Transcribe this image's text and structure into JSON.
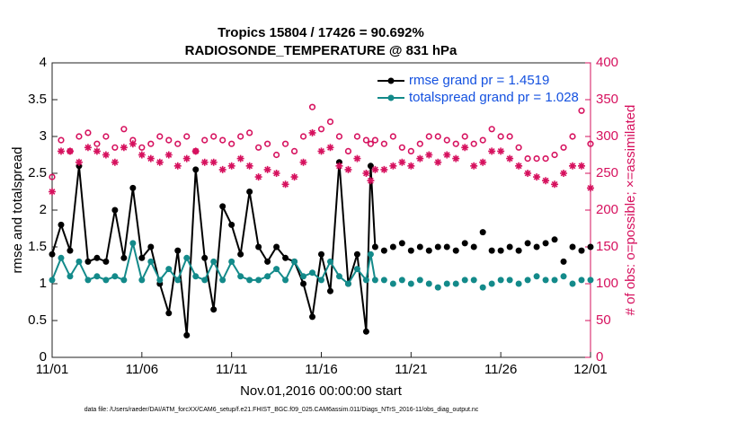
{
  "chart_data": {
    "type": "line",
    "title": "Tropics 15804 / 17426 = 90.692%",
    "subtitle": "RADIOSONDE_TEMPERATURE @ 831 hPa",
    "xlabel": "Nov.01,2016 00:00:00 start",
    "ylabel": "rmse and totalspread",
    "y2label": "# of obs: o=possible; ×=assimilated",
    "footnote": "data file: /Users/raeder/DAI/ATM_forcXX/CAM6_setup/f.e21.FHIST_BGC.f09_025.CAM6assim.011/Diags_NTrS_2016-11/obs_diag_output.nc",
    "legend": "upper right",
    "xlim": [
      0,
      30
    ],
    "xticks": [
      {
        "value": 0,
        "label": "11/01"
      },
      {
        "value": 5,
        "label": "11/06"
      },
      {
        "value": 10,
        "label": "11/11"
      },
      {
        "value": 15,
        "label": "11/16"
      },
      {
        "value": 20,
        "label": "11/21"
      },
      {
        "value": 25,
        "label": "11/26"
      },
      {
        "value": 30,
        "label": "12/01"
      }
    ],
    "ylim": [
      0,
      4
    ],
    "yticks": [
      0,
      0.5,
      1,
      1.5,
      2,
      2.5,
      3,
      3.5,
      4
    ],
    "y2lim": [
      0,
      400
    ],
    "y2ticks": [
      0,
      50,
      100,
      150,
      200,
      250,
      300,
      350,
      400
    ],
    "y2color": "#d6115e",
    "x": [
      0,
      0.5,
      1,
      1.5,
      2,
      2.5,
      3,
      3.5,
      4,
      4.5,
      5,
      5.5,
      6,
      6.5,
      7,
      7.5,
      8,
      8.5,
      9,
      9.5,
      10,
      10.5,
      11,
      11.5,
      12,
      12.5,
      13,
      13.5,
      14,
      14.5,
      15,
      15.5,
      16,
      16.5,
      17,
      17.5,
      17.75,
      18,
      18.25,
      18.5,
      18.75,
      19,
      19.25,
      19.5,
      19.75,
      20,
      20.25,
      20.5,
      20.75,
      21,
      21.25,
      21.5,
      21.75,
      22,
      22.25,
      22.5,
      22.75,
      23,
      23.25,
      23.5,
      23.75,
      24,
      24.25,
      24.5,
      24.75,
      25,
      25.25,
      25.5,
      25.75,
      26,
      26.25,
      26.5,
      26.75,
      27,
      27.25,
      27.5,
      27.75,
      28,
      28.25,
      28.5,
      28.75,
      29,
      29.25,
      29.5,
      29.75,
      30
    ],
    "series": [
      {
        "name": "rmse grand pr = 1.4519",
        "color": "#000000",
        "marker": "dot",
        "values": [
          1.4,
          1.8,
          1.45,
          2.6,
          1.3,
          1.35,
          1.3,
          2.0,
          1.35,
          2.3,
          1.35,
          1.5,
          1.0,
          0.6,
          1.45,
          0.3,
          2.55,
          1.35,
          0.65,
          2.05,
          1.8,
          1.4,
          2.25,
          1.5,
          1.3,
          1.5,
          1.35,
          1.3,
          1.0,
          0.55,
          1.4,
          0.9,
          2.65,
          1.0,
          1.4,
          0.35,
          2.6,
          1.5,
          null,
          1.45,
          null,
          1.5,
          null,
          1.55,
          null,
          1.45,
          null,
          1.5,
          null,
          1.45,
          null,
          1.5,
          null,
          1.5,
          null,
          1.45,
          null,
          1.55,
          null,
          1.5,
          null,
          1.7,
          null,
          1.45,
          null,
          1.45,
          null,
          1.5,
          null,
          1.45,
          null,
          1.55,
          null,
          1.5,
          null,
          1.55,
          null,
          1.6,
          null,
          1.3,
          null,
          1.5,
          null,
          1.45,
          null,
          1.5
        ]
      },
      {
        "name": "totalspread grand pr = 1.028",
        "color": "#138a8a",
        "marker": "dot",
        "values": [
          1.05,
          1.35,
          1.1,
          1.3,
          1.05,
          1.1,
          1.05,
          1.1,
          1.05,
          1.55,
          1.05,
          1.3,
          1.05,
          1.2,
          1.05,
          1.35,
          1.1,
          1.05,
          1.3,
          1.05,
          1.3,
          1.1,
          1.05,
          1.05,
          1.1,
          1.2,
          1.05,
          1.3,
          1.1,
          1.15,
          1.05,
          1.3,
          1.1,
          1.0,
          1.2,
          1.05,
          1.4,
          1.05,
          null,
          1.05,
          null,
          1.0,
          null,
          1.05,
          null,
          1.0,
          null,
          1.05,
          null,
          1.0,
          null,
          0.95,
          null,
          1.0,
          null,
          1.0,
          null,
          1.05,
          null,
          1.05,
          null,
          0.95,
          null,
          1.0,
          null,
          1.05,
          null,
          1.05,
          null,
          1.0,
          null,
          1.05,
          null,
          1.1,
          null,
          1.05,
          null,
          1.05,
          null,
          1.1,
          null,
          1.0,
          null,
          1.05,
          null,
          1.05
        ]
      },
      {
        "color": "#d6115e",
        "marker": "o",
        "axis": "y2",
        "values": [
          245,
          295,
          280,
          300,
          305,
          290,
          300,
          285,
          310,
          295,
          285,
          290,
          300,
          295,
          290,
          300,
          280,
          295,
          300,
          295,
          290,
          300,
          305,
          285,
          290,
          275,
          290,
          280,
          300,
          340,
          310,
          320,
          300,
          280,
          300,
          295,
          290,
          295,
          null,
          290,
          null,
          300,
          null,
          285,
          null,
          280,
          null,
          290,
          null,
          300,
          null,
          300,
          null,
          295,
          null,
          290,
          null,
          300,
          null,
          290,
          null,
          295,
          null,
          310,
          null,
          300,
          null,
          300,
          null,
          285,
          null,
          270,
          null,
          270,
          null,
          270,
          null,
          275,
          null,
          285,
          null,
          300,
          null,
          335,
          null,
          290
        ]
      },
      {
        "color": "#d6115e",
        "marker": "*",
        "axis": "y2",
        "values": [
          225,
          280,
          280,
          265,
          285,
          280,
          275,
          265,
          285,
          290,
          275,
          270,
          265,
          275,
          260,
          270,
          280,
          265,
          265,
          255,
          260,
          270,
          260,
          245,
          255,
          250,
          235,
          245,
          265,
          305,
          280,
          285,
          260,
          255,
          270,
          250,
          240,
          255,
          null,
          255,
          null,
          260,
          null,
          265,
          null,
          260,
          null,
          270,
          null,
          275,
          null,
          265,
          null,
          275,
          null,
          270,
          null,
          285,
          null,
          260,
          null,
          265,
          null,
          280,
          null,
          280,
          null,
          270,
          null,
          260,
          null,
          250,
          null,
          245,
          null,
          240,
          null,
          235,
          null,
          250,
          null,
          260,
          null,
          260,
          null,
          230
        ]
      }
    ]
  }
}
